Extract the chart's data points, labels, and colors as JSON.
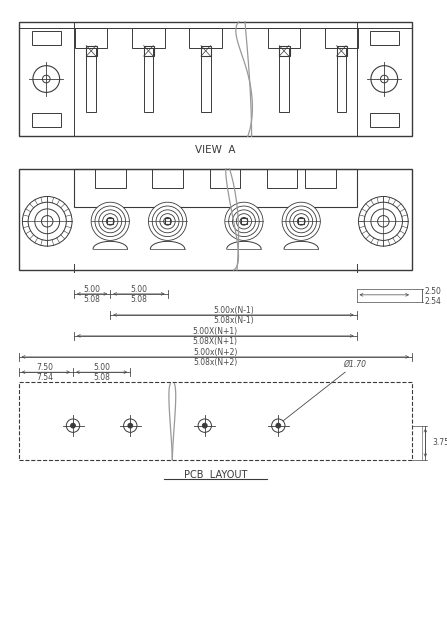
{
  "bg_color": "#ffffff",
  "line_color": "#3a3a3a",
  "dim_color": "#4a4a4a",
  "gray_line": "#999999",
  "view_a_label": "VIEW  A",
  "pcb_layout_label": "PCB  LAYOUT",
  "dims": {
    "d1_top": "5.00",
    "d1_bot": "5.08",
    "d2_top": "5.00",
    "d2_bot": "5.08",
    "d3_top": "5.00x(N-1)",
    "d3_bot": "5.08x(N-1)",
    "d4_top": "5.00X(N+1)",
    "d4_bot": "5.08X(N+1)",
    "d5_top": "5.00x(N+2)",
    "d5_bot": "5.08x(N+2)",
    "right_top": "2.50",
    "right_bot": "2.54",
    "pcb_d1_top": "7.50",
    "pcb_d1_bot": "7.54",
    "pcb_d2_top": "5.00",
    "pcb_d2_bot": "5.08",
    "pcb_right": "3.75",
    "pcb_dia": "Ø1.70"
  }
}
